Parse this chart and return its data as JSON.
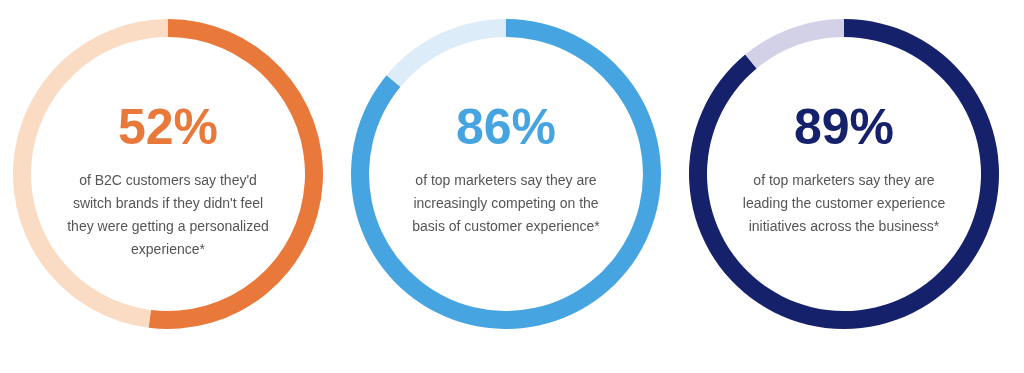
{
  "chart_data": [
    {
      "type": "donut",
      "categories": [
        null,
        null
      ],
      "values": [
        52,
        48
      ],
      "colors": [
        "#e8793a",
        "#fadcc5"
      ],
      "value_labels": [
        "52%",
        null
      ],
      "annotations": [
        "of B2C customers say they'd switch brands if they didn't feel they were getting a personalized experience*"
      ]
    },
    {
      "type": "donut",
      "categories": [
        null,
        null
      ],
      "values": [
        86,
        14
      ],
      "colors": [
        "#46a4e1",
        "#dcecf8"
      ],
      "value_labels": [
        "86%",
        null
      ],
      "annotations": [
        "of top marketers say they are increasingly competing on the basis of customer experience*"
      ]
    },
    {
      "type": "donut",
      "categories": [
        null,
        null
      ],
      "values": [
        89,
        11
      ],
      "colors": [
        "#16216b",
        "#d3d1e8"
      ],
      "value_labels": [
        "89%",
        null
      ],
      "annotations": [
        "of top marketers say they are leading the customer experience initiatives across the business*"
      ]
    }
  ]
}
